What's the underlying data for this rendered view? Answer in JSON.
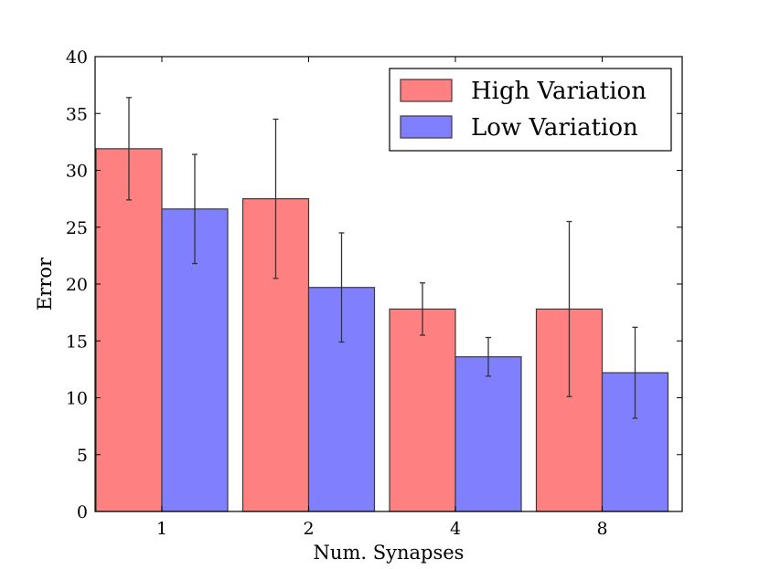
{
  "chart_data": {
    "type": "bar",
    "title": "",
    "xlabel": "Num. Synapses",
    "ylabel": "Error",
    "categories": [
      "1",
      "2",
      "4",
      "8"
    ],
    "ylim": [
      0,
      40
    ],
    "yticks": [
      0,
      5,
      10,
      15,
      20,
      25,
      30,
      35,
      40
    ],
    "grid": false,
    "legend_position": "top-right",
    "series": [
      {
        "name": "High Variation",
        "color": "#ff8080",
        "values": [
          31.9,
          27.5,
          17.8,
          17.8
        ],
        "errors": [
          4.5,
          7.0,
          2.3,
          7.7
        ]
      },
      {
        "name": "Low Variation",
        "color": "#8080ff",
        "values": [
          26.6,
          19.7,
          13.6,
          12.2
        ],
        "errors": [
          4.8,
          4.8,
          1.7,
          4.0
        ]
      }
    ]
  }
}
